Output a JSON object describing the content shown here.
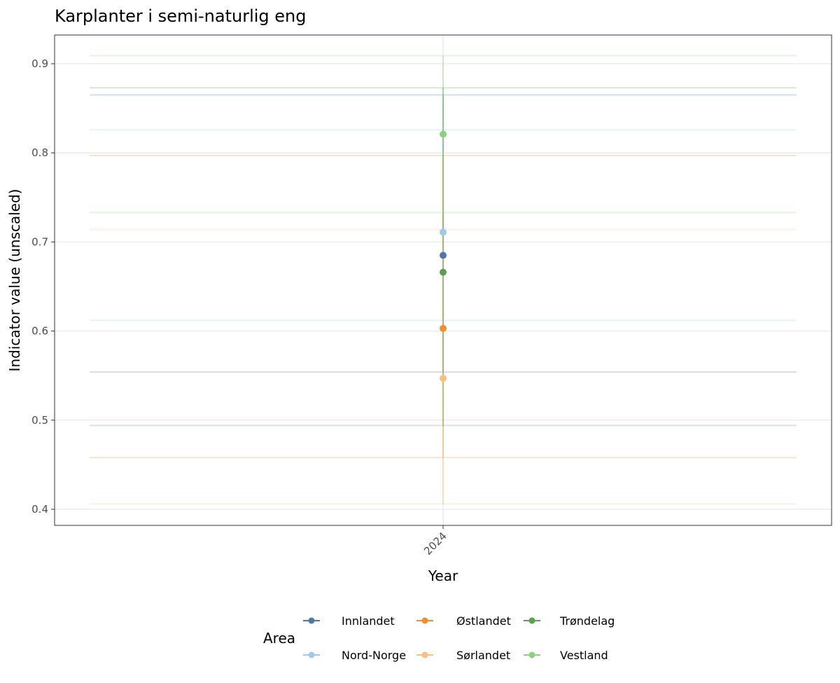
{
  "chart_data": {
    "type": "scatter",
    "title": "Karplanter i semi-naturlig eng",
    "xlabel": "Year",
    "ylabel": "Indicator value (unscaled)",
    "x_categories": [
      "2024"
    ],
    "ylim": [
      0.38,
      0.935
    ],
    "yticks": [
      0.4,
      0.5,
      0.6,
      0.7,
      0.8,
      0.9
    ],
    "ytick_labels": [
      "0.4",
      "0.5",
      "0.6",
      "0.7",
      "0.8",
      "0.9"
    ],
    "grid": true,
    "legend": {
      "title": "Area",
      "placement": "bottom"
    },
    "series": [
      {
        "name": "Innlandet",
        "color": "#4E79A7",
        "x": "2024",
        "y": 0.685,
        "low": 0.554,
        "high": 0.865
      },
      {
        "name": "Nord-Norge",
        "color": "#A0CBE8",
        "x": "2024",
        "y": 0.711,
        "low": 0.612,
        "high": 0.826
      },
      {
        "name": "Østlandet",
        "color": "#F28E2B",
        "x": "2024",
        "y": 0.603,
        "low": 0.458,
        "high": 0.797
      },
      {
        "name": "Sørlandet",
        "color": "#FFBE7D",
        "x": "2024",
        "y": 0.547,
        "low": 0.406,
        "high": 0.714
      },
      {
        "name": "Trøndelag",
        "color": "#59A14F",
        "x": "2024",
        "y": 0.666,
        "low": 0.494,
        "high": 0.873
      },
      {
        "name": "Vestland",
        "color": "#8CD17D",
        "x": "2024",
        "y": 0.821,
        "low": 0.733,
        "high": 0.909
      }
    ]
  }
}
